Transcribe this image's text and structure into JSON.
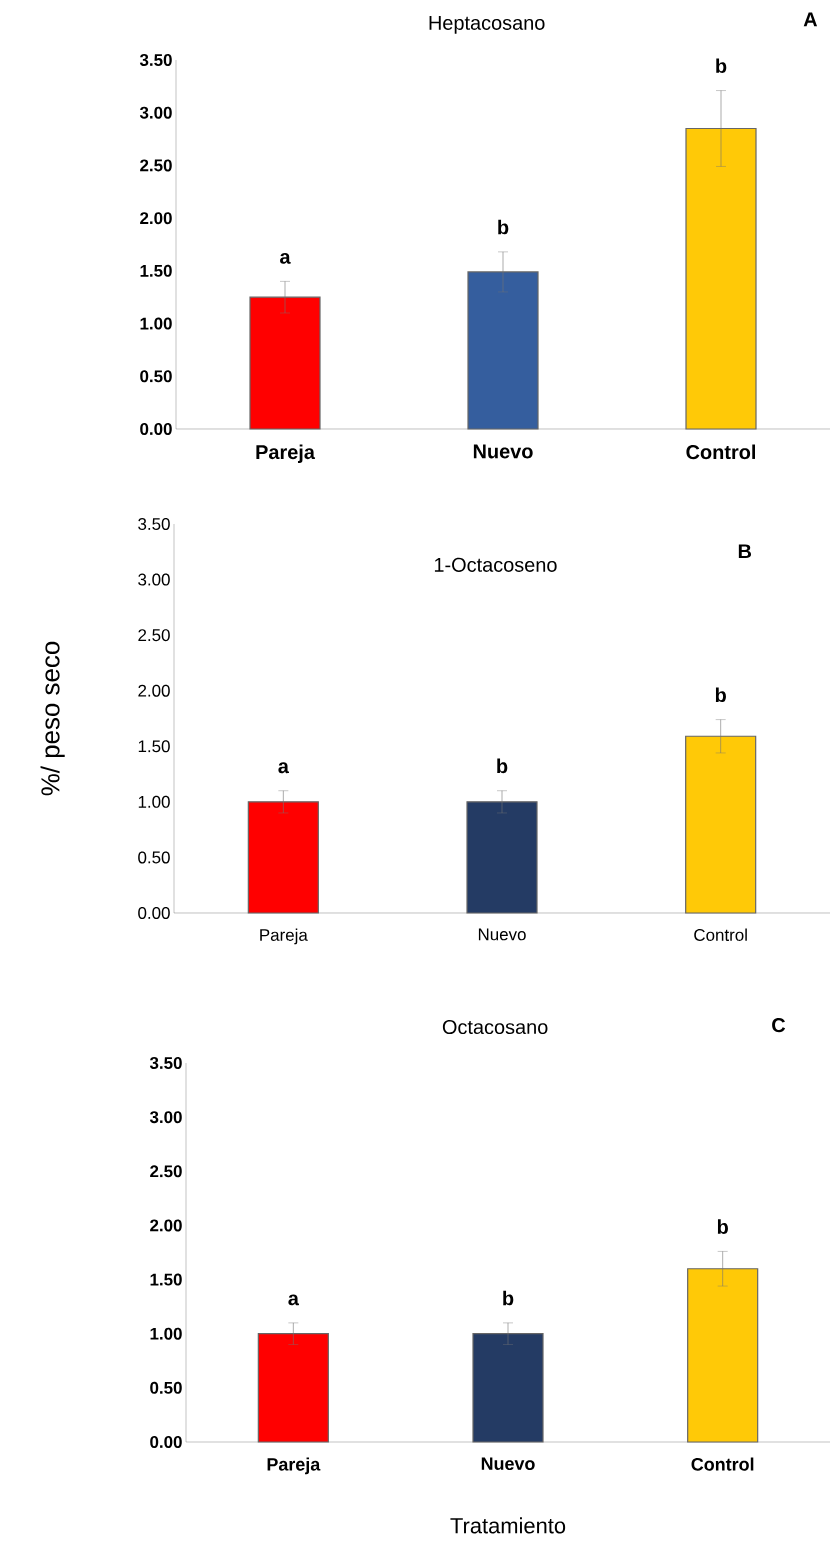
{
  "chart_data": [
    {
      "type": "bar",
      "title": "Heptacosano",
      "categories": [
        "Pareja",
        "Nuevo",
        "Control"
      ],
      "values": [
        1.25,
        1.49,
        2.85
      ],
      "errors": [
        0.15,
        0.19,
        0.36
      ],
      "colors": [
        "#ff0000",
        "#355e9e",
        "#ffc907"
      ],
      "ylim": [
        0,
        3.5
      ],
      "yticks": [
        {
          "value": 0,
          "label": "0.00"
        },
        {
          "value": 0.5,
          "label": "0.50"
        },
        {
          "value": 1,
          "label": "1.00"
        },
        {
          "value": 1.5,
          "label": "1.50"
        },
        {
          "value": 2,
          "label": "2.00"
        },
        {
          "value": 2.5,
          "label": "2.50"
        },
        {
          "value": 3,
          "label": "3.00"
        },
        {
          "value": 3.5,
          "label": "3.50"
        }
      ],
      "grid": false,
      "annotations": [
        "A",
        "a",
        "b",
        "b"
      ]
    },
    {
      "type": "bar",
      "title": "1-Octacoseno",
      "ylabel": "%/ peso seco",
      "categories": [
        "Pareja",
        "Nuevo",
        "Control"
      ],
      "values": [
        1.0,
        1.0,
        1.59
      ],
      "errors": [
        0.1,
        0.1,
        0.15
      ],
      "colors": [
        "#ff0000",
        "#243b64",
        "#ffc907"
      ],
      "ylim": [
        0,
        3.5
      ],
      "yticks": [
        {
          "value": 0,
          "label": "0.00"
        },
        {
          "value": 0.5,
          "label": "0.50"
        },
        {
          "value": 1,
          "label": "1.00"
        },
        {
          "value": 1.5,
          "label": "1.50"
        },
        {
          "value": 2,
          "label": "2.00"
        },
        {
          "value": 2.5,
          "label": "2.50"
        },
        {
          "value": 3,
          "label": "3.00"
        },
        {
          "value": 3.5,
          "label": "3.50"
        }
      ],
      "grid": false,
      "annotations": [
        "B",
        "a",
        "b",
        "b"
      ]
    },
    {
      "type": "bar",
      "title": "Octacosano",
      "xlabel": "Tratamiento",
      "categories": [
        "Pareja",
        "Nuevo",
        "Control"
      ],
      "values": [
        1.0,
        1.0,
        1.6
      ],
      "errors": [
        0.1,
        0.1,
        0.16
      ],
      "colors": [
        "#ff0000",
        "#243b64",
        "#ffc907"
      ],
      "ylim": [
        0,
        3.5
      ],
      "yticks": [
        {
          "value": 0,
          "label": "0.00"
        },
        {
          "value": 0.5,
          "label": "0.50"
        },
        {
          "value": 1,
          "label": "1.00"
        },
        {
          "value": 1.5,
          "label": "1.50"
        },
        {
          "value": 2,
          "label": "2.00"
        },
        {
          "value": 2.5,
          "label": "2.50"
        },
        {
          "value": 3,
          "label": "3.00"
        },
        {
          "value": 3.5,
          "label": "3.50"
        }
      ],
      "grid": false,
      "annotations": [
        "C",
        "a",
        "b",
        "b"
      ]
    }
  ]
}
